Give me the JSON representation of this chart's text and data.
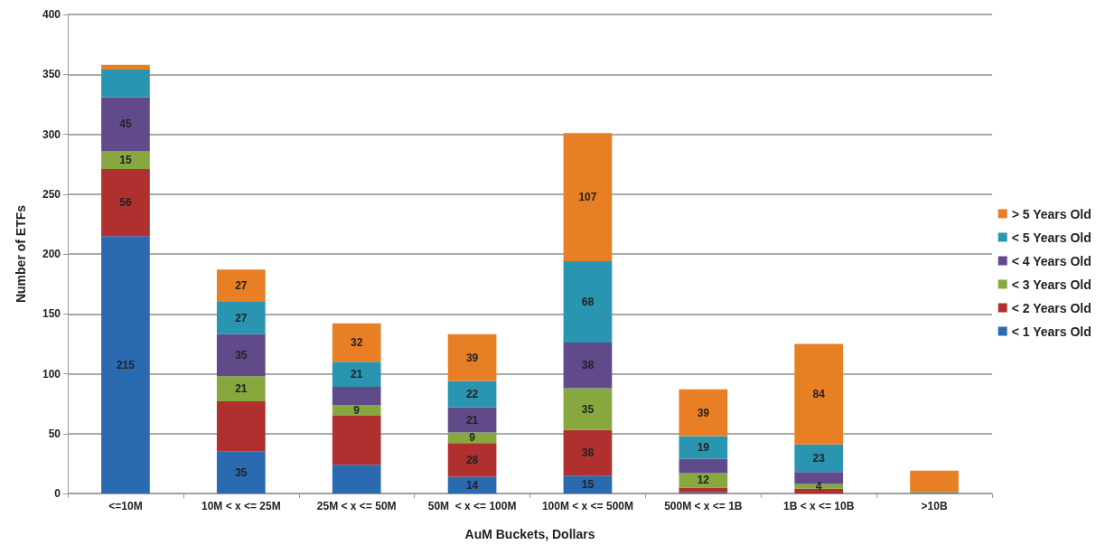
{
  "chart_data": {
    "type": "bar",
    "stacked": true,
    "xlabel": "AuM Buckets, Dollars",
    "ylabel": "Number of ETFs",
    "categories": [
      "<=10M",
      "10M < x <= 25M",
      "25M < x <= 50M",
      "50M  < x <= 100M",
      "100M < x <= 500M",
      "500M < x <= 1B",
      "1B < x <= 10B",
      ">10B"
    ],
    "series": [
      {
        "name": "< 1 Years Old",
        "color": "#2a6ab0",
        "values": [
          215,
          35,
          24,
          14,
          15,
          1,
          0,
          0
        ],
        "value_labels": [
          "215",
          "35",
          null,
          "14",
          "15",
          null,
          null,
          null
        ]
      },
      {
        "name": "< 2 Years Old",
        "color": "#b03030",
        "values": [
          56,
          42,
          41,
          28,
          38,
          4,
          4,
          0
        ],
        "value_labels": [
          "56",
          null,
          null,
          "28",
          "38",
          null,
          null,
          null
        ]
      },
      {
        "name": "< 3 Years Old",
        "color": "#86a83e",
        "values": [
          15,
          21,
          9,
          9,
          35,
          12,
          4,
          0
        ],
        "value_labels": [
          "15",
          "21",
          "9",
          "9",
          "35",
          "12",
          "4",
          null
        ]
      },
      {
        "name": "< 4 Years Old",
        "color": "#614a8a",
        "values": [
          45,
          35,
          15,
          21,
          38,
          12,
          10,
          0
        ],
        "value_labels": [
          "45",
          "35",
          null,
          "21",
          "38",
          null,
          null,
          null
        ]
      },
      {
        "name": "< 5 Years Old",
        "color": "#2a95b0",
        "values": [
          23,
          27,
          21,
          22,
          68,
          19,
          23,
          1
        ],
        "value_labels": [
          null,
          "27",
          "21",
          "22",
          "68",
          "19",
          "23",
          null
        ]
      },
      {
        "name": "> 5 Years Old",
        "color": "#e87f25",
        "values": [
          4,
          27,
          32,
          39,
          107,
          39,
          84,
          18
        ],
        "value_labels": [
          null,
          "27",
          "32",
          "39",
          "107",
          "39",
          "84",
          null
        ]
      }
    ],
    "ylim": [
      0,
      400
    ],
    "yticks": [
      0,
      50,
      100,
      150,
      200,
      250,
      300,
      350,
      400
    ],
    "grid": "y",
    "legend": "right"
  }
}
